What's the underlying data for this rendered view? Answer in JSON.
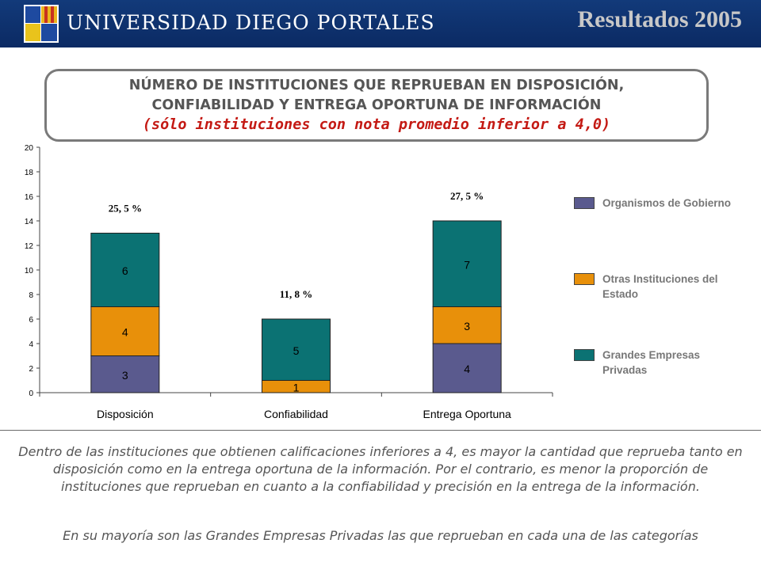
{
  "header": {
    "university": "UNIVERSIDAD DIEGO PORTALES",
    "page_title": "Resultados 2005"
  },
  "title_box": {
    "line1": "NÚMERO DE INSTITUCIONES QUE REPRUEBAN EN DISPOSICIÓN,",
    "line2": "CONFIABILIDAD Y ENTREGA OPORTUNA DE INFORMACIÓN",
    "subtitle": "(sólo instituciones con nota promedio inferior a 4,0)"
  },
  "chart_data": {
    "type": "bar",
    "stacked": true,
    "categories": [
      "Disposición",
      "Confiabilidad",
      "Entrega Oportuna"
    ],
    "series": [
      {
        "name": "Organismos de Gobierno",
        "color": "#5a5a8e",
        "values": [
          3,
          0,
          4
        ],
        "labels": [
          "3",
          "",
          "4"
        ]
      },
      {
        "name": "Otras Instituciones del Estado",
        "color": "#e8900a",
        "values": [
          4,
          1,
          3
        ],
        "labels": [
          "4",
          "1",
          "3"
        ]
      },
      {
        "name": "Grandes Empresas Privadas",
        "color": "#0b7273",
        "values": [
          6,
          5,
          7
        ],
        "labels": [
          "6",
          "5",
          "7"
        ]
      }
    ],
    "annotations": [
      "25, 5 %",
      "11, 8 %",
      "27, 5 %"
    ],
    "ylim": [
      0,
      20
    ],
    "yticks": [
      "0",
      "2",
      "4",
      "6",
      "8",
      "10",
      "12",
      "14",
      "16",
      "18",
      "20"
    ],
    "grid": false,
    "legend_position": "right"
  },
  "legend": [
    {
      "label": "Organismos de Gobierno",
      "color": "#5a5a8e"
    },
    {
      "label": "Otras Instituciones del Estado",
      "color": "#e8900a"
    },
    {
      "label": "Grandes Empresas Privadas",
      "color": "#0b7273"
    }
  ],
  "footer": {
    "paragraph1": "Dentro de las instituciones que obtienen calificaciones inferiores a 4, es mayor la cantidad que reprueba tanto en disposición como en la entrega oportuna de la información. Por el contrario, es menor la proporción de instituciones que reprueban en cuanto a la confiabilidad y precisión en la entrega de la información.",
    "paragraph2": "En su mayoría son las Grandes Empresas Privadas las que reprueban en cada una de las categorías"
  }
}
